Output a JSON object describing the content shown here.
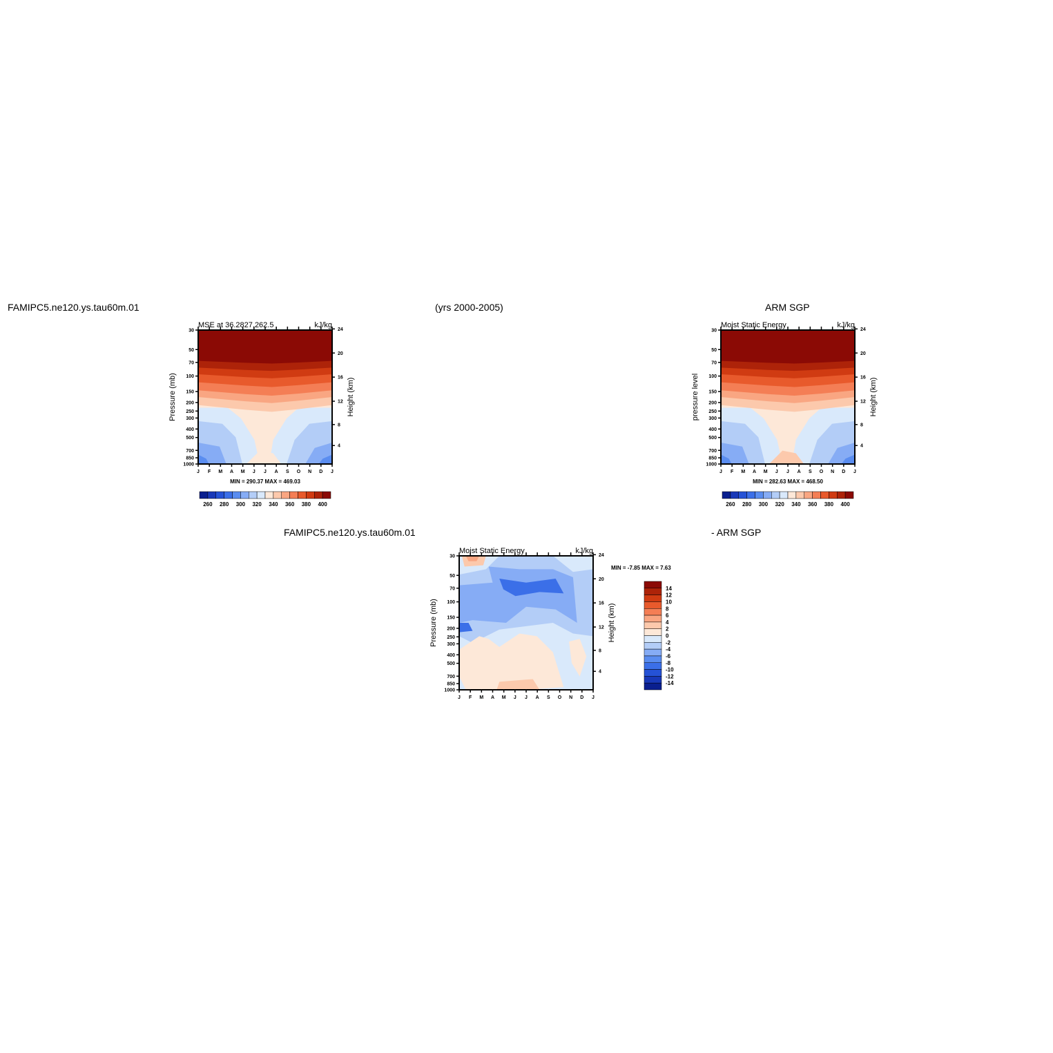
{
  "header": {
    "model_name": "FAMIPC5.ne120.ys.tau60m.01",
    "years": "(yrs 2000-2005)",
    "obs_name": "ARM SGP",
    "diff_model": "FAMIPC5.ne120.ys.tau60m.01",
    "diff_obs": "- ARM SGP"
  },
  "chart_data": [
    {
      "type": "heatmap",
      "id": "model",
      "title": "MSE at 36.2827,262.5",
      "units": "kJ/kg",
      "ylabel": "Pressure (mb)",
      "y2label": "Height (km)",
      "stats": "MIN = 290.37  MAX = 469.03",
      "x": [
        "J",
        "F",
        "M",
        "A",
        "M",
        "J",
        "J",
        "A",
        "S",
        "O",
        "N",
        "D",
        "J"
      ],
      "pressure_ticks": [
        30,
        50,
        70,
        100,
        150,
        200,
        250,
        300,
        400,
        500,
        700,
        850,
        1000
      ],
      "height_ticks": [
        24,
        20,
        16,
        12,
        8,
        4
      ],
      "colorbar_labels": [
        "260",
        "280",
        "300",
        "320",
        "340",
        "360",
        "380",
        "400"
      ],
      "colors": [
        "#0a1f8f",
        "#1838b8",
        "#2552d6",
        "#3b6fe8",
        "#5a8df0",
        "#86acf5",
        "#b3cdf7",
        "#d9e9fb",
        "#fde8d8",
        "#fcc9ac",
        "#f9a682",
        "#f47e55",
        "#e85a2c",
        "#d03b12",
        "#ad2309",
        "#8b0a05"
      ]
    },
    {
      "type": "heatmap",
      "id": "obs",
      "title": "Moist Static Energy",
      "units": "kJ/kg",
      "ylabel": "pressure level",
      "y2label": "Height (km)",
      "stats": "MIN = 282.63  MAX = 468.50",
      "x": [
        "J",
        "F",
        "M",
        "A",
        "M",
        "J",
        "J",
        "A",
        "S",
        "O",
        "N",
        "D",
        "J"
      ],
      "pressure_ticks": [
        30,
        50,
        70,
        100,
        150,
        200,
        250,
        300,
        400,
        500,
        700,
        850,
        1000
      ],
      "height_ticks": [
        24,
        20,
        16,
        12,
        8,
        4
      ],
      "colorbar_labels": [
        "260",
        "280",
        "300",
        "320",
        "340",
        "360",
        "380",
        "400"
      ]
    },
    {
      "type": "heatmap",
      "id": "diff",
      "title": "Moist Static Energy",
      "units": "kJ/kg",
      "ylabel": "Pressure (mb)",
      "y2label": "Height (km)",
      "stats": "MIN =   -7.85  MAX =     7.63",
      "x": [
        "J",
        "F",
        "M",
        "A",
        "M",
        "J",
        "J",
        "A",
        "S",
        "O",
        "N",
        "D",
        "J"
      ],
      "pressure_ticks": [
        30,
        50,
        70,
        100,
        150,
        200,
        250,
        300,
        400,
        500,
        700,
        850,
        1000
      ],
      "height_ticks": [
        24,
        20,
        16,
        12,
        8,
        4
      ],
      "colorbar_labels": [
        "14",
        "12",
        "10",
        "8",
        "6",
        "4",
        "2",
        "0",
        "-2",
        "-4",
        "-6",
        "-8",
        "-10",
        "-12",
        "-14"
      ]
    }
  ]
}
